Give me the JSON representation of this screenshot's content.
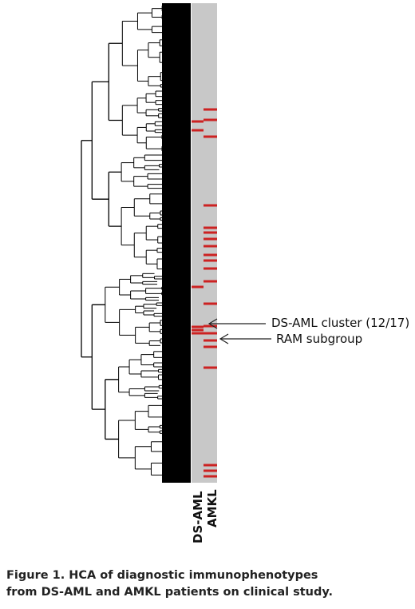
{
  "columns": {
    "col1": "DS-AML",
    "col2": "AMKL"
  },
  "annotations": {
    "cluster": "DS-AML cluster (12/17)",
    "ram": "RAM subgroup"
  },
  "caption": {
    "line1": "Figure 1. HCA of diagnostic immunophenotypes",
    "line2": "from DS-AML and AMKL patients on clinical study."
  },
  "colors": {
    "dendrogram": "#000000",
    "heatmap_bg": "#c8c8c8",
    "marker": "#cc2222",
    "arrow": "#222222"
  }
}
